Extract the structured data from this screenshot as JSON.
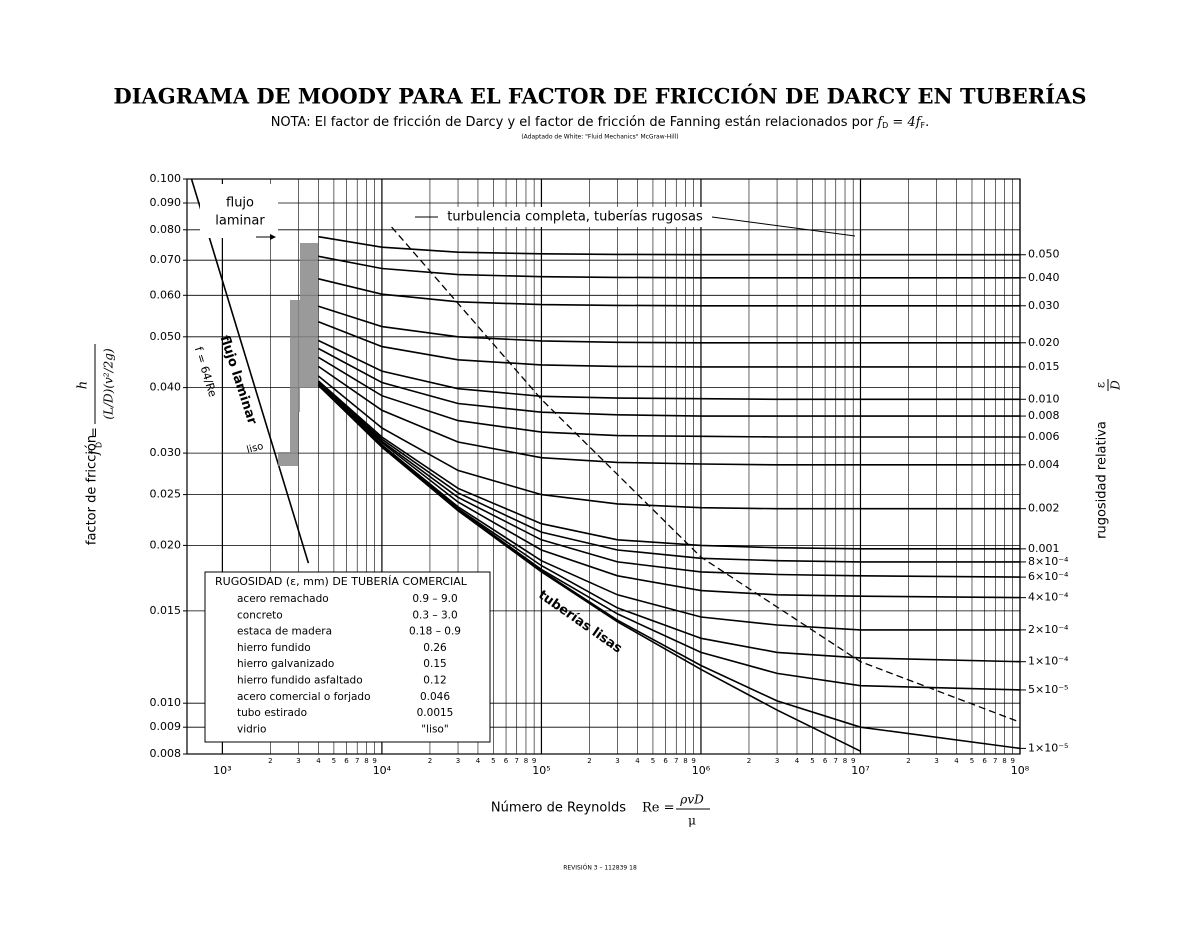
{
  "chart_data": {
    "type": "line",
    "title": "DIAGRAMA DE MOODY PARA EL FACTOR DE FRICCIÓN DE DARCY EN TUBERÍAS",
    "note": "NOTA: El factor de fricción de Darcy y el factor de fricción de Fanning están relacionados por",
    "note_formula": [
      "f",
      "D",
      " = 4f",
      "F",
      "."
    ],
    "source": "(Adaptado de White: \"Fluid Mechanics\" McGraw-Hill)",
    "footer": "REVISIÓN 3 – 112839 18",
    "x_label": "Número de Reynolds",
    "x_formula": {
      "lhs": "Re =",
      "num": "ρvD",
      "den": "μ"
    },
    "y_label": "factor de fricción",
    "y_formula": {
      "lhs": "f",
      "sub": "D",
      "eq": "=",
      "num": "h",
      "den": "(L/D)(v²/2g)"
    },
    "y2_label": "rugosidad relativa",
    "y2_formula": {
      "num": "ε",
      "den": "D"
    },
    "annotations": {
      "laminar_box": [
        "flujo",
        "laminar"
      ],
      "laminar_formula": "f = 64/Re",
      "liso": "liso"
    },
    "log_x": true,
    "log_y": true,
    "grid": true,
    "color": "#000000",
    "xlim": [
      600,
      100000000
    ],
    "ylim": [
      0.008,
      0.1
    ],
    "xticks": [
      {
        "value": 1000,
        "label": "10³"
      },
      {
        "value": 10000,
        "label": "10⁴"
      },
      {
        "value": 100000,
        "label": "10⁵"
      },
      {
        "value": 1000000,
        "label": "10⁶"
      },
      {
        "value": 10000000,
        "label": "10⁷"
      },
      {
        "value": 100000000,
        "label": "10⁸"
      }
    ],
    "xminorticks": [
      {
        "value": 2000,
        "label": "2"
      },
      {
        "value": 3000,
        "label": "3"
      },
      {
        "value": 4000,
        "label": "4"
      },
      {
        "value": 5000,
        "label": "5"
      },
      {
        "value": 6000,
        "label": "6"
      },
      {
        "value": 7000,
        "label": "7"
      },
      {
        "value": 8000,
        "label": "8"
      },
      {
        "value": 9000,
        "label": "9"
      },
      {
        "value": 20000,
        "label": "2"
      },
      {
        "value": 30000,
        "label": "3"
      },
      {
        "value": 40000,
        "label": "4"
      },
      {
        "value": 50000,
        "label": "5"
      },
      {
        "value": 60000,
        "label": "6"
      },
      {
        "value": 70000,
        "label": "7"
      },
      {
        "value": 80000,
        "label": "8"
      },
      {
        "value": 90000,
        "label": "9"
      },
      {
        "value": 200000,
        "label": "2"
      },
      {
        "value": 300000,
        "label": "3"
      },
      {
        "value": 400000,
        "label": "4"
      },
      {
        "value": 500000,
        "label": "5"
      },
      {
        "value": 600000,
        "label": "6"
      },
      {
        "value": 700000,
        "label": "7"
      },
      {
        "value": 800000,
        "label": "8"
      },
      {
        "value": 900000,
        "label": "9"
      },
      {
        "value": 2000000,
        "label": "2"
      },
      {
        "value": 3000000,
        "label": "3"
      },
      {
        "value": 4000000,
        "label": "4"
      },
      {
        "value": 5000000,
        "label": "5"
      },
      {
        "value": 6000000,
        "label": "6"
      },
      {
        "value": 7000000,
        "label": "7"
      },
      {
        "value": 8000000,
        "label": "8"
      },
      {
        "value": 9000000,
        "label": "9"
      },
      {
        "value": 20000000,
        "label": "2"
      },
      {
        "value": 30000000,
        "label": "3"
      },
      {
        "value": 40000000,
        "label": "4"
      },
      {
        "value": 50000000,
        "label": "5"
      },
      {
        "value": 60000000,
        "label": "6"
      },
      {
        "value": 70000000,
        "label": "7"
      },
      {
        "value": 80000000,
        "label": "8"
      },
      {
        "value": 90000000,
        "label": "9"
      }
    ],
    "yticks": [
      {
        "value": 0.1,
        "label": "0.100"
      },
      {
        "value": 0.09,
        "label": "0.090"
      },
      {
        "value": 0.08,
        "label": "0.080"
      },
      {
        "value": 0.07,
        "label": "0.070"
      },
      {
        "value": 0.06,
        "label": "0.060"
      },
      {
        "value": 0.05,
        "label": "0.050"
      },
      {
        "value": 0.04,
        "label": "0.040"
      },
      {
        "value": 0.03,
        "label": "0.030"
      },
      0.025,
      {
        "value": 0.02,
        "label": "0.020"
      },
      0.015,
      {
        "value": 0.01,
        "label": "0.010"
      },
      0.009,
      0.008
    ],
    "x": [
      4000,
      10000,
      30000,
      100000,
      300000,
      1000000,
      3000000,
      10000000,
      100000000
    ],
    "series": [
      {
        "name": "0.050",
        "values": [
          0.0776,
          0.0741,
          0.0725,
          0.072,
          0.0718,
          0.0717,
          0.0717,
          0.0717,
          0.0717
        ]
      },
      {
        "name": "0.040",
        "values": [
          0.0712,
          0.0675,
          0.0657,
          0.0651,
          0.0649,
          0.0648,
          0.0648,
          0.0648,
          0.0648
        ]
      },
      {
        "name": "0.030",
        "values": [
          0.0645,
          0.0603,
          0.0583,
          0.0576,
          0.0574,
          0.0573,
          0.0573,
          0.0573,
          0.0573
        ]
      },
      {
        "name": "0.020",
        "values": [
          0.0572,
          0.0523,
          0.05,
          0.0491,
          0.0488,
          0.0487,
          0.0487,
          0.0487,
          0.0487
        ]
      },
      {
        "name": "0.015",
        "values": [
          0.0534,
          0.0479,
          0.0452,
          0.0442,
          0.0439,
          0.0438,
          0.0438,
          0.0438,
          0.0438
        ]
      },
      {
        "name": "0.010",
        "values": [
          0.0492,
          0.043,
          0.0398,
          0.0385,
          0.0382,
          0.0381,
          0.038,
          0.038,
          0.038
        ]
      },
      {
        "name": "0.008",
        "values": [
          0.0475,
          0.0409,
          0.0373,
          0.0359,
          0.0355,
          0.0353,
          0.0353,
          0.0353,
          0.0353
        ]
      },
      {
        "name": "0.006",
        "values": [
          0.0457,
          0.0386,
          0.0346,
          0.0329,
          0.0324,
          0.0323,
          0.0322,
          0.0322,
          0.0322
        ]
      },
      {
        "name": "0.004",
        "values": [
          0.0439,
          0.0362,
          0.0315,
          0.0294,
          0.0288,
          0.0286,
          0.0285,
          0.0285,
          0.0285
        ]
      },
      {
        "name": "0.002",
        "values": [
          0.0421,
          0.0335,
          0.0278,
          0.025,
          0.024,
          0.0236,
          0.0235,
          0.0235,
          0.0235
        ]
      },
      {
        "name": "0.001",
        "values": [
          0.0412,
          0.0322,
          0.0257,
          0.022,
          0.0205,
          0.02,
          0.0198,
          0.0197,
          0.0197
        ]
      },
      {
        "name": "8×10⁻⁴",
        "values": [
          0.041,
          0.0319,
          0.0252,
          0.0212,
          0.0196,
          0.0189,
          0.0187,
          0.0186,
          0.0186
        ]
      },
      {
        "name": "6×10⁻⁴",
        "values": [
          0.0409,
          0.0316,
          0.0247,
          0.0205,
          0.0186,
          0.0178,
          0.0176,
          0.0175,
          0.0174
        ]
      },
      {
        "name": "4×10⁻⁴",
        "values": [
          0.0407,
          0.0314,
          0.0242,
          0.0196,
          0.0175,
          0.0164,
          0.0161,
          0.016,
          0.0159
        ]
      },
      {
        "name": "2×10⁻⁴",
        "values": [
          0.0406,
          0.0311,
          0.0237,
          0.0187,
          0.0161,
          0.0146,
          0.0141,
          0.0138,
          0.0138
        ]
      },
      {
        "name": "1×10⁻⁴",
        "values": [
          0.0405,
          0.031,
          0.0235,
          0.0183,
          0.0152,
          0.0133,
          0.0125,
          0.0122,
          0.012
        ]
      },
      {
        "name": "5×10⁻⁵",
        "values": [
          0.0404,
          0.0309,
          0.0234,
          0.018,
          0.0148,
          0.0125,
          0.0114,
          0.0108,
          0.0106
        ]
      },
      {
        "name": "1×10⁻⁵",
        "values": [
          0.0404,
          0.0308,
          0.0233,
          0.0179,
          0.0144,
          0.0118,
          0.0101,
          0.009,
          0.0082
        ]
      },
      {
        "name": "tuberías lisas",
        "values": [
          0.0404,
          0.0309,
          0.0233,
          0.0178,
          0.0143,
          0.0116,
          0.0097,
          0.0081,
          null
        ]
      },
      {
        "name": "flujo laminar",
        "x": [
          640,
          3460
        ],
        "values": [
          0.1,
          0.0185
        ]
      },
      {
        "name": "turbulencia completa, tuberías rugosas",
        "style": "dashed",
        "x": [
          11500,
          100000,
          1000000,
          10000000,
          100000000
        ],
        "values": [
          0.081,
          0.038,
          0.019,
          0.012,
          0.0092
        ]
      }
    ]
  },
  "roughness_table": {
    "title": "RUGOSIDAD (ε, mm) DE TUBERÍA COMERCIAL",
    "rows": [
      [
        "acero remachado",
        "0.9 – 9.0"
      ],
      [
        "concreto",
        "0.3 – 3.0"
      ],
      [
        "estaca de madera",
        "0.18 – 0.9"
      ],
      [
        "hierro fundido",
        "0.26"
      ],
      [
        "hierro galvanizado",
        "0.15"
      ],
      [
        "hierro fundido asfaltado",
        "0.12"
      ],
      [
        "acero comercial o forjado",
        "0.046"
      ],
      [
        "tubo estirado",
        "0.0015"
      ],
      [
        "vidrio",
        "\"liso\""
      ]
    ]
  }
}
